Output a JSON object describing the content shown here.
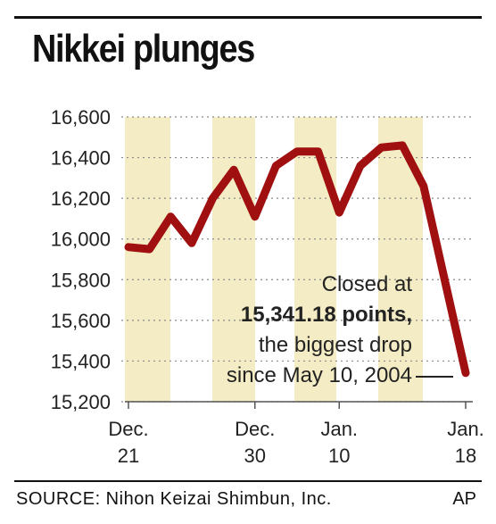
{
  "chart_data": {
    "type": "line",
    "title": "Nikkei plunges",
    "ylim": [
      15200,
      16600
    ],
    "yticks": [
      "16,600",
      "16,400",
      "16,200",
      "16,000",
      "15,800",
      "15,600",
      "15,400",
      "15,200"
    ],
    "ytick_values": [
      16600,
      16400,
      16200,
      16000,
      15800,
      15600,
      15400,
      15200
    ],
    "x_labels": [
      {
        "line1": "Dec.",
        "line2": "21",
        "index": 0
      },
      {
        "line1": "Dec.",
        "line2": "30",
        "index": 6
      },
      {
        "line1": "Jan.",
        "line2": "10",
        "index": 10
      },
      {
        "line1": "Jan.",
        "line2": "18",
        "index": 16
      }
    ],
    "values": [
      15960,
      15950,
      16110,
      15980,
      16200,
      16340,
      16110,
      16360,
      16430,
      16430,
      16130,
      16360,
      16450,
      16460,
      16260,
      15800,
      15341.18
    ],
    "line_color": "#a01010",
    "grid": true,
    "band_color": "#f3ecc4",
    "annotation": {
      "line1": "Closed at",
      "line2": "15,341.18 points,",
      "line3": "the biggest drop",
      "line4": "since May 10, 2004"
    }
  },
  "source": "SOURCE: Nihon Keizai Shimbun, Inc.",
  "credit": "AP"
}
